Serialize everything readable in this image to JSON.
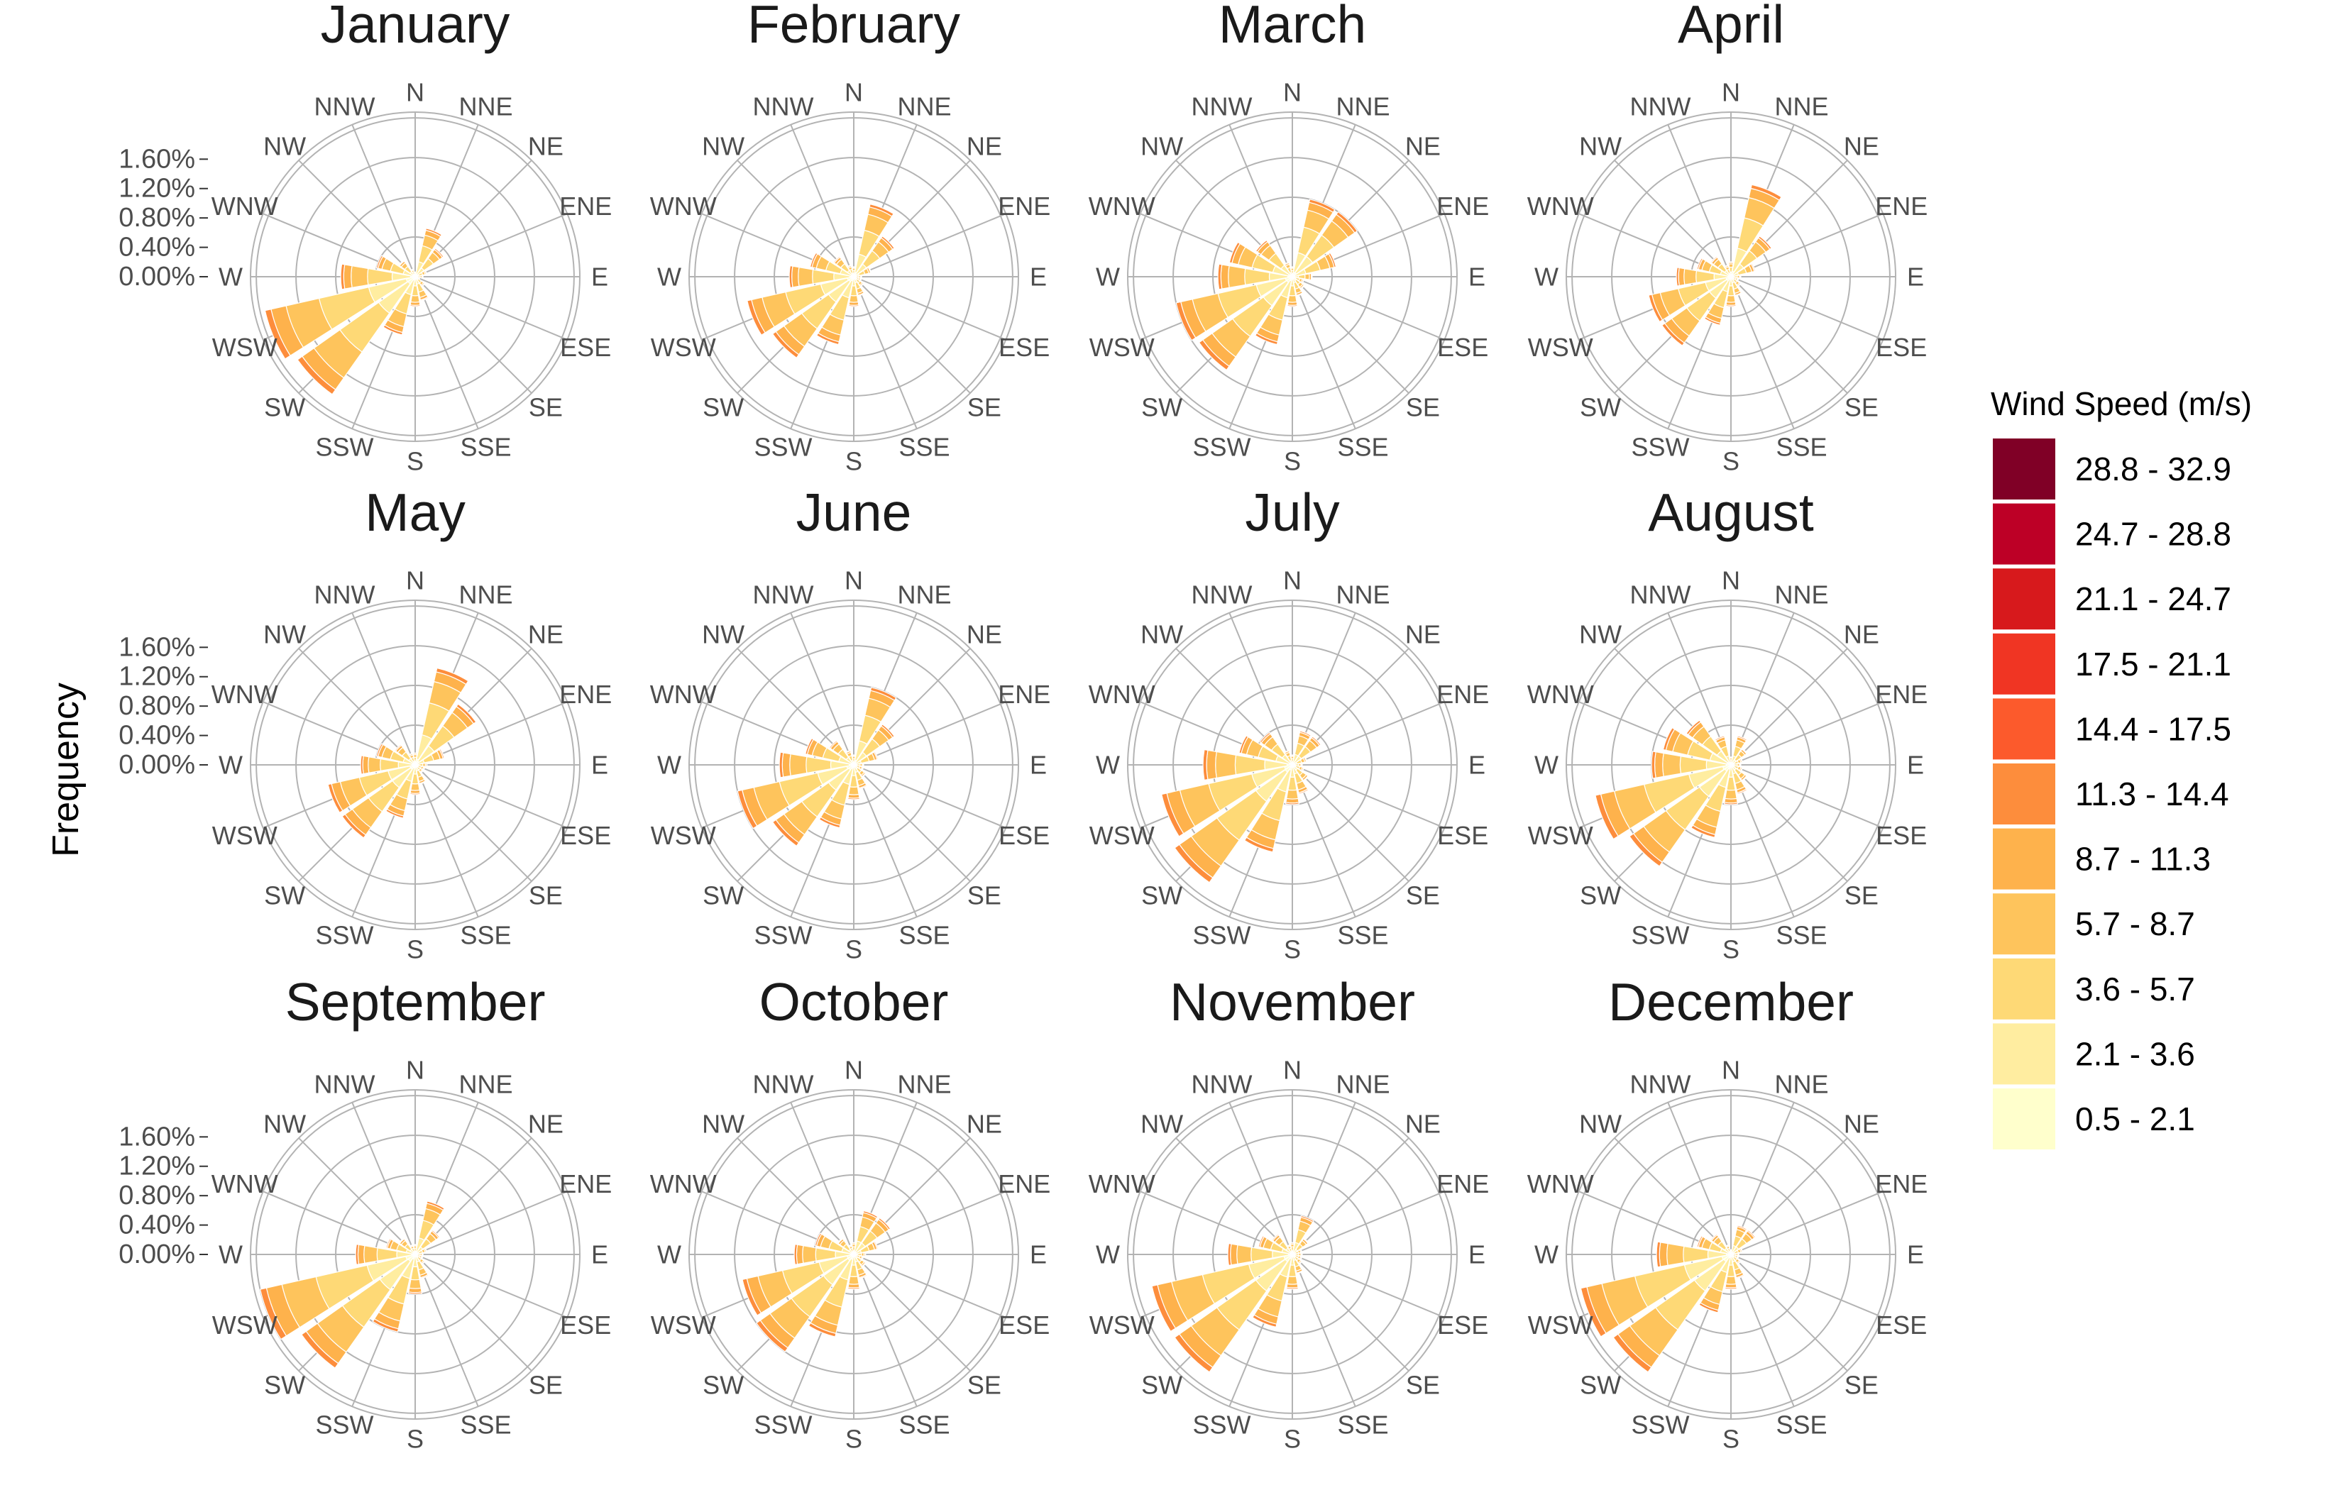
{
  "chart_data": {
    "type": "polar-stacked-bar",
    "ylabel": "Frequency",
    "directions": [
      "N",
      "NNE",
      "NE",
      "ENE",
      "E",
      "ESE",
      "SE",
      "SSE",
      "S",
      "SSW",
      "SW",
      "WSW",
      "W",
      "WNW",
      "NW",
      "NNW"
    ],
    "radial_ticks": [
      "0.00%",
      "0.40%",
      "0.80%",
      "1.20%",
      "1.60%"
    ],
    "radial_max": 1.6,
    "legend": {
      "title": "Wind Speed (m/s)",
      "bins": [
        "0.5 - 2.1",
        "2.1 - 3.6",
        "3.6 - 5.7",
        "5.7 - 8.7",
        "8.7 - 11.3",
        "11.3 - 14.4",
        "14.4 - 17.5",
        "17.5 - 21.1",
        "21.1 - 24.7",
        "24.7 - 28.8",
        "28.8 - 32.9"
      ],
      "colors": [
        "#ffffcc",
        "#ffeda0",
        "#fed976",
        "#fec45c",
        "#feb24c",
        "#fd8d3c",
        "#fc5a2c",
        "#f03523",
        "#d7191c",
        "#bd0026",
        "#800026"
      ]
    },
    "panels": [
      {
        "month": "January",
        "totals": [
          0.05,
          0.5,
          0.35,
          0.12,
          0.08,
          0.05,
          0.12,
          0.25,
          0.3,
          0.6,
          1.45,
          1.55,
          0.75,
          0.4,
          0.2,
          0.08
        ]
      },
      {
        "month": "February",
        "totals": [
          0.1,
          0.75,
          0.5,
          0.18,
          0.08,
          0.08,
          0.12,
          0.2,
          0.3,
          0.7,
          1.0,
          1.1,
          0.65,
          0.45,
          0.25,
          0.12
        ]
      },
      {
        "month": "March",
        "totals": [
          0.1,
          0.8,
          0.8,
          0.45,
          0.2,
          0.12,
          0.15,
          0.2,
          0.3,
          0.7,
          1.15,
          1.2,
          0.75,
          0.65,
          0.45,
          0.15
        ]
      },
      {
        "month": "April",
        "totals": [
          0.15,
          0.95,
          0.5,
          0.25,
          0.1,
          0.08,
          0.12,
          0.2,
          0.3,
          0.5,
          0.85,
          0.85,
          0.55,
          0.35,
          0.25,
          0.12
        ]
      },
      {
        "month": "May",
        "totals": [
          0.12,
          1.0,
          0.75,
          0.3,
          0.12,
          0.1,
          0.1,
          0.2,
          0.3,
          0.55,
          0.9,
          0.9,
          0.55,
          0.4,
          0.25,
          0.12
        ]
      },
      {
        "month": "June",
        "totals": [
          0.1,
          0.8,
          0.5,
          0.25,
          0.1,
          0.1,
          0.15,
          0.25,
          0.35,
          0.65,
          1.0,
          1.2,
          0.75,
          0.5,
          0.3,
          0.15
        ]
      },
      {
        "month": "July",
        "totals": [
          0.1,
          0.35,
          0.35,
          0.15,
          0.1,
          0.12,
          0.2,
          0.3,
          0.4,
          0.9,
          1.45,
          1.35,
          0.9,
          0.55,
          0.4,
          0.15
        ]
      },
      {
        "month": "August",
        "totals": [
          0.08,
          0.3,
          0.2,
          0.12,
          0.1,
          0.12,
          0.2,
          0.3,
          0.4,
          0.75,
          1.25,
          1.4,
          0.8,
          0.7,
          0.55,
          0.3
        ]
      },
      {
        "month": "September",
        "totals": [
          0.1,
          0.55,
          0.3,
          0.12,
          0.08,
          0.08,
          0.12,
          0.25,
          0.4,
          0.8,
          1.4,
          1.6,
          0.6,
          0.3,
          0.2,
          0.1
        ]
      },
      {
        "month": "October",
        "totals": [
          0.12,
          0.45,
          0.45,
          0.25,
          0.12,
          0.1,
          0.15,
          0.25,
          0.35,
          0.85,
          1.2,
          1.15,
          0.6,
          0.4,
          0.2,
          0.1
        ]
      },
      {
        "month": "November",
        "totals": [
          0.12,
          0.4,
          0.2,
          0.1,
          0.1,
          0.1,
          0.12,
          0.2,
          0.35,
          0.75,
          1.45,
          1.45,
          0.65,
          0.35,
          0.25,
          0.1
        ]
      },
      {
        "month": "December",
        "totals": [
          0.05,
          0.3,
          0.3,
          0.12,
          0.08,
          0.08,
          0.12,
          0.25,
          0.35,
          0.6,
          1.45,
          1.55,
          0.75,
          0.35,
          0.25,
          0.1
        ]
      }
    ]
  }
}
